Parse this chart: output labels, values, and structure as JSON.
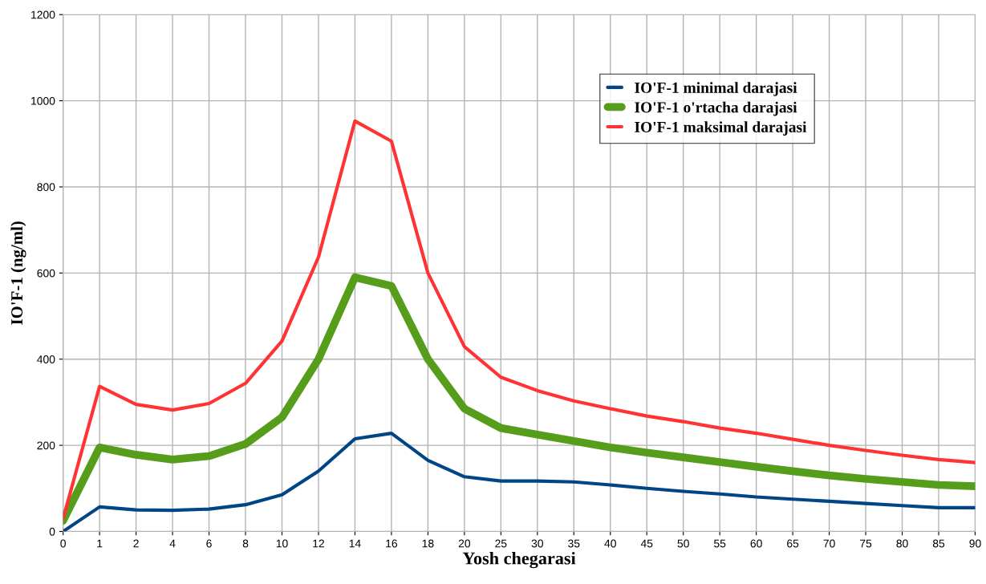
{
  "chart_data": {
    "type": "line",
    "xlabel": "Yosh chegarasi",
    "ylabel": "IO'F-1 (ng/ml)",
    "categories": [
      "0",
      "1",
      "2",
      "4",
      "6",
      "8",
      "10",
      "12",
      "14",
      "16",
      "18",
      "20",
      "25",
      "30",
      "35",
      "40",
      "45",
      "50",
      "55",
      "60",
      "65",
      "70",
      "75",
      "80",
      "85",
      "90"
    ],
    "series": [
      {
        "name": "IO'F-1 minimal darajasi",
        "color": "#004586",
        "values": [
          0,
          57,
          50,
          49,
          52,
          62,
          85,
          140,
          215,
          228,
          165,
          127,
          117,
          117,
          115,
          108,
          100,
          93,
          87,
          80,
          75,
          70,
          65,
          60,
          55,
          55
        ]
      },
      {
        "name": "IO'F-1 o'rtacha darajasi",
        "color": "#579d1c",
        "values": [
          25,
          195,
          178,
          167,
          175,
          203,
          265,
          400,
          590,
          570,
          400,
          285,
          240,
          225,
          210,
          195,
          183,
          172,
          161,
          150,
          140,
          130,
          122,
          115,
          108,
          105
        ]
      },
      {
        "name": "IO'F-1 maksimal darajasi",
        "color": "#ff3333",
        "values": [
          30,
          337,
          295,
          282,
          297,
          344,
          442,
          637,
          953,
          906,
          600,
          429,
          358,
          327,
          303,
          285,
          268,
          255,
          240,
          228,
          214,
          200,
          188,
          177,
          167,
          160
        ]
      }
    ],
    "ylim": [
      0,
      1200
    ],
    "yticks": [
      0,
      200,
      400,
      600,
      800,
      1000,
      1200
    ],
    "grid": true,
    "legend": "top right"
  }
}
